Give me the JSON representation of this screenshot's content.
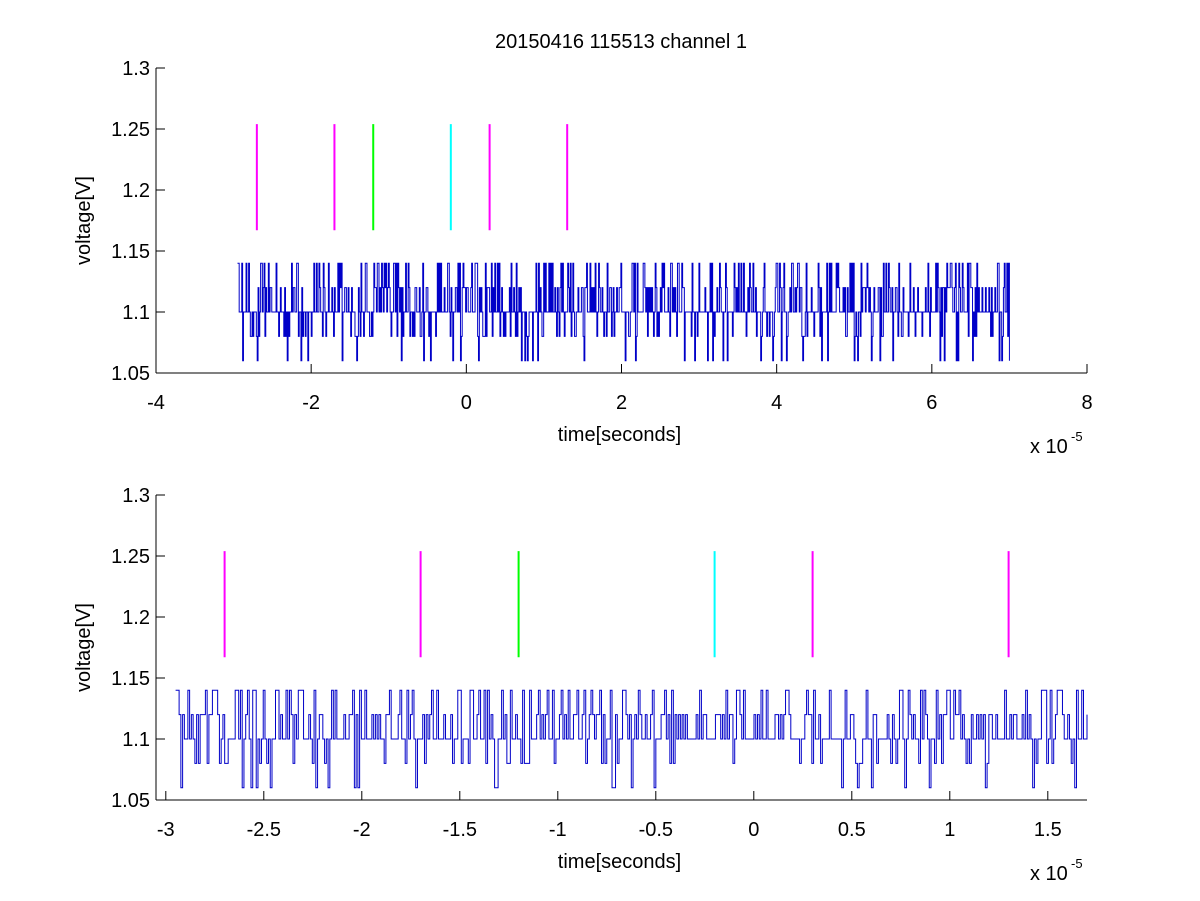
{
  "figure_title": "20150416 115513 channel 1",
  "chart_data": [
    {
      "type": "line",
      "title": "20150416 115513 channel 1",
      "xlabel": "time[seconds]",
      "ylabel": "voltage[V]",
      "x_multiplier_label": "x 10",
      "x_multiplier_exponent": "-5",
      "xlim": [
        -4,
        8
      ],
      "ylim": [
        1.05,
        1.3
      ],
      "xticks": [
        -4,
        -2,
        0,
        2,
        4,
        6,
        8
      ],
      "xtick_labels": [
        "-4",
        "-2",
        "0",
        "2",
        "4",
        "6",
        "8"
      ],
      "yticks": [
        1.05,
        1.1,
        1.15,
        1.2,
        1.25,
        1.3
      ],
      "ytick_labels": [
        "1.05",
        "1.1",
        "1.15",
        "1.2",
        "1.25",
        "1.3"
      ],
      "grid": false,
      "series": [
        {
          "color": "#0000c8",
          "x_start": -2.95,
          "x_end": 7.0,
          "baseline": 1.1,
          "levels": [
            1.06,
            1.08,
            1.1,
            1.12,
            1.14
          ],
          "description_values": "quantized noise signal around 1.1 V switching between 1.06 and 1.14 V"
        }
      ],
      "markers": [
        {
          "x": -2.7,
          "y_range": [
            1.167,
            1.254
          ],
          "color": "#ff00ff"
        },
        {
          "x": -1.7,
          "y_range": [
            1.167,
            1.254
          ],
          "color": "#ff00ff"
        },
        {
          "x": -1.2,
          "y_range": [
            1.167,
            1.254
          ],
          "color": "#00ff00"
        },
        {
          "x": -0.2,
          "y_range": [
            1.167,
            1.254
          ],
          "color": "#00ffff"
        },
        {
          "x": 0.3,
          "y_range": [
            1.167,
            1.254
          ],
          "color": "#ff00ff"
        },
        {
          "x": 1.3,
          "y_range": [
            1.167,
            1.254
          ],
          "color": "#ff00ff"
        }
      ]
    },
    {
      "type": "line",
      "xlabel": "time[seconds]",
      "ylabel": "voltage[V]",
      "x_multiplier_label": "x 10",
      "x_multiplier_exponent": "-5",
      "xlim": [
        -3.05,
        1.7
      ],
      "ylim": [
        1.05,
        1.3
      ],
      "xticks": [
        -3,
        -2.5,
        -2,
        -1.5,
        -1,
        -0.5,
        0,
        0.5,
        1,
        1.5
      ],
      "xtick_labels": [
        "-3",
        "-2.5",
        "-2",
        "-1.5",
        "-1",
        "-0.5",
        "0",
        "0.5",
        "1",
        "1.5"
      ],
      "yticks": [
        1.05,
        1.1,
        1.15,
        1.2,
        1.25,
        1.3
      ],
      "ytick_labels": [
        "1.05",
        "1.1",
        "1.15",
        "1.2",
        "1.25",
        "1.3"
      ],
      "grid": false,
      "series": [
        {
          "color": "#0000c8",
          "x_start": -2.95,
          "x_end": 1.7,
          "baseline": 1.1,
          "levels": [
            1.06,
            1.08,
            1.1,
            1.12,
            1.14
          ]
        }
      ],
      "markers": [
        {
          "x": -2.7,
          "y_range": [
            1.167,
            1.254
          ],
          "color": "#ff00ff"
        },
        {
          "x": -1.7,
          "y_range": [
            1.167,
            1.254
          ],
          "color": "#ff00ff"
        },
        {
          "x": -1.2,
          "y_range": [
            1.167,
            1.254
          ],
          "color": "#00ff00"
        },
        {
          "x": -0.2,
          "y_range": [
            1.167,
            1.254
          ],
          "color": "#00ffff"
        },
        {
          "x": 0.3,
          "y_range": [
            1.167,
            1.254
          ],
          "color": "#ff00ff"
        },
        {
          "x": 1.3,
          "y_range": [
            1.167,
            1.254
          ],
          "color": "#ff00ff"
        }
      ]
    }
  ]
}
